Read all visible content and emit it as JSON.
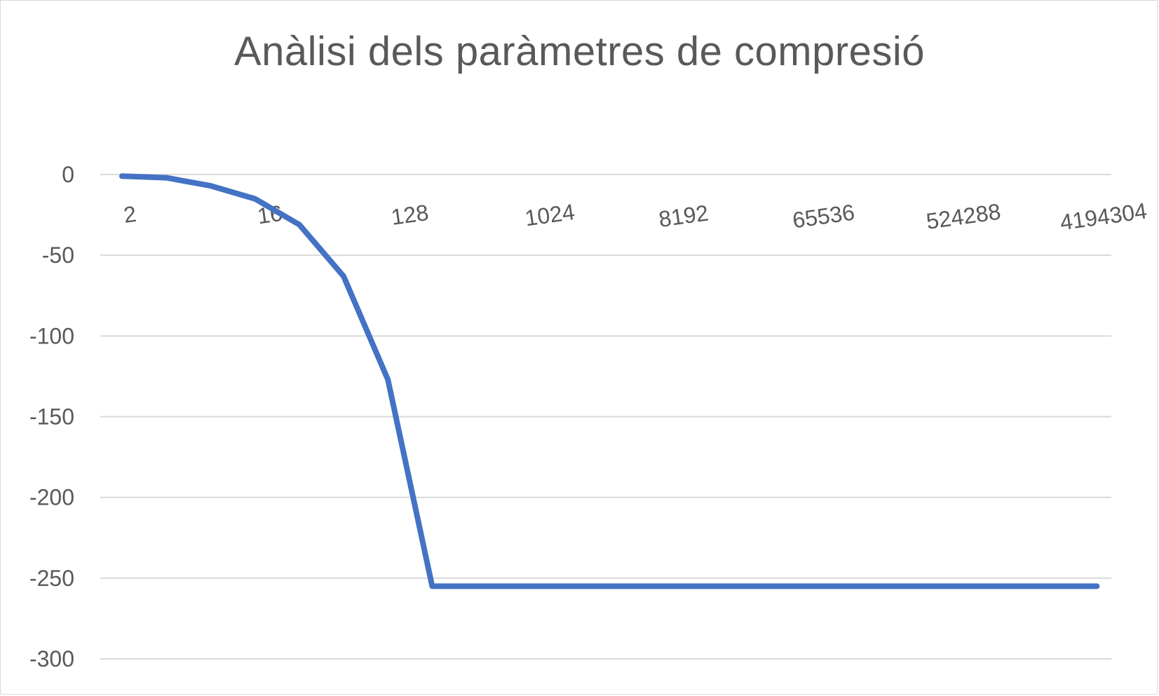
{
  "chart_data": {
    "type": "line",
    "title": "Anàlisi dels paràmetres de compresió",
    "xlabel": "",
    "ylabel": "",
    "x_tick_labels": [
      "2",
      "16",
      "128",
      "1024",
      "8192",
      "65536",
      "524288",
      "4194304"
    ],
    "x": [
      "2",
      "4",
      "8",
      "16",
      "32",
      "64",
      "128",
      "256",
      "512",
      "1024",
      "2048",
      "4096",
      "8192",
      "16384",
      "32768",
      "65536",
      "131072",
      "262144",
      "524288",
      "1048576",
      "2097152",
      "4194304",
      "8388608"
    ],
    "series": [
      {
        "color": "#4472c4",
        "values": [
          -1,
          -2,
          -7,
          -15,
          -31,
          -63,
          -127,
          -255,
          -255,
          -255,
          -255,
          -255,
          -255,
          -255,
          -255,
          -255,
          -255,
          -255,
          -255,
          -255,
          -255,
          -255,
          -255
        ]
      }
    ],
    "y_ticks": [
      0,
      -50,
      -100,
      -150,
      -200,
      -250,
      -300
    ],
    "ylim": [
      -300,
      0
    ],
    "grid": true,
    "legend": "none",
    "colors": {
      "line": "#4472c4",
      "grid": "#d9d9d9",
      "text": "#595959"
    }
  }
}
